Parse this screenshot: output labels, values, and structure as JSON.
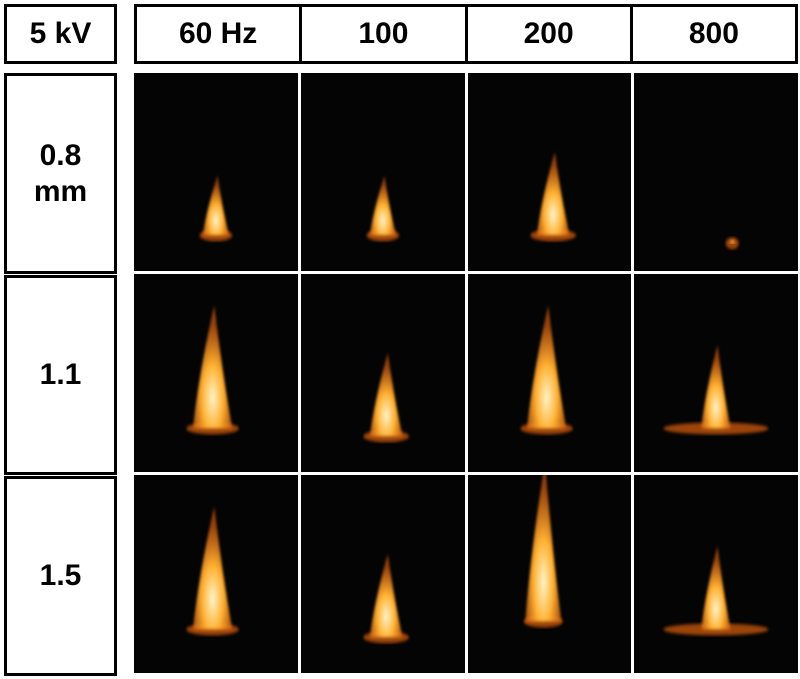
{
  "corner_label": "5 kV",
  "columns": [
    "60 Hz",
    "100",
    "200",
    "800"
  ],
  "rows": [
    {
      "label_lines": [
        "0.8",
        "mm"
      ]
    },
    {
      "label_lines": [
        "1.1"
      ]
    },
    {
      "label_lines": [
        "1.5"
      ]
    }
  ],
  "photos": [
    [
      "flame-small",
      "flame-small",
      "flame-medium",
      "flame-faint"
    ],
    [
      "flame-large",
      "flame-medium",
      "flame-large",
      "flame-medium-wide"
    ],
    [
      "flame-large",
      "flame-medium",
      "flame-tall",
      "flame-medium-wide"
    ]
  ],
  "colors": {
    "background": "#040404",
    "flame_core": "#fff4c8",
    "flame_mid": "#ffb030",
    "flame_edge": "#d05a10"
  }
}
